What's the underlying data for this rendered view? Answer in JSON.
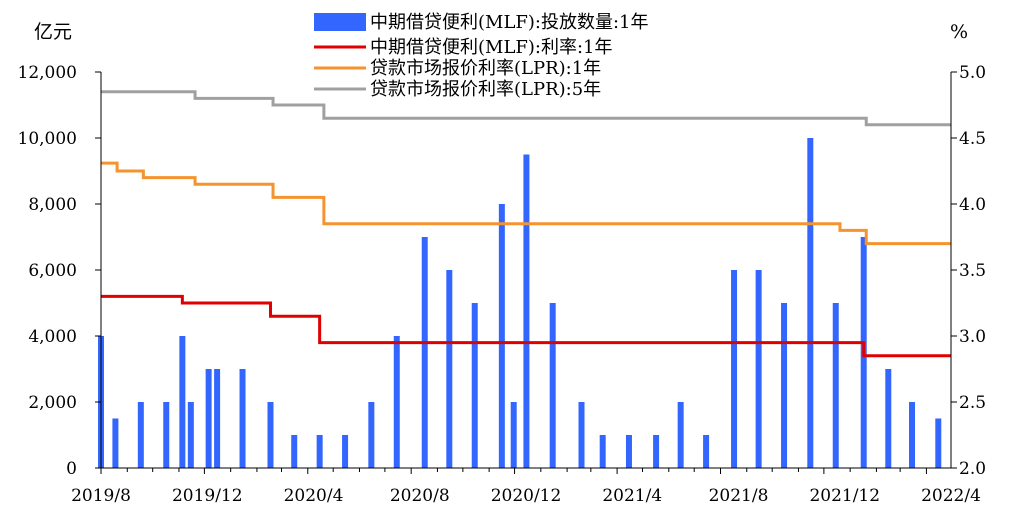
{
  "chart_data": {
    "type": "bar",
    "title": "",
    "y_left": {
      "unit": "亿元",
      "range": [
        0,
        12000
      ],
      "ticks": [
        "0",
        "2,000",
        "4,000",
        "6,000",
        "8,000",
        "10,000",
        "12,000"
      ]
    },
    "y_right": {
      "unit": "%",
      "range": [
        2.0,
        5.0
      ],
      "ticks": [
        "2.0",
        "2.5",
        "3.0",
        "3.5",
        "4.0",
        "4.5",
        "5.0"
      ]
    },
    "x_ticks": [
      "2019/8",
      "2019/12",
      "2020/4",
      "2020/8",
      "2020/12",
      "2021/4",
      "2021/8",
      "2021/12",
      "2022/4"
    ],
    "x_range": [
      "2019-08-01",
      "2022-04-30"
    ],
    "grid": false,
    "legend_position": "top",
    "series": [
      {
        "name": "中期借贷便利(MLF):投放数量:1年",
        "kind": "bar",
        "axis": "left",
        "color": "#3366FF",
        "points": [
          {
            "date": "2019-08-01",
            "value": 4000
          },
          {
            "date": "2019-08-18",
            "value": 1500
          },
          {
            "date": "2019-09-17",
            "value": 2000
          },
          {
            "date": "2019-10-17",
            "value": 2000
          },
          {
            "date": "2019-11-05",
            "value": 4000
          },
          {
            "date": "2019-11-15",
            "value": 2000
          },
          {
            "date": "2019-12-06",
            "value": 3000
          },
          {
            "date": "2019-12-16",
            "value": 3000
          },
          {
            "date": "2020-01-15",
            "value": 3000
          },
          {
            "date": "2020-02-17",
            "value": 2000
          },
          {
            "date": "2020-03-16",
            "value": 1000
          },
          {
            "date": "2020-04-15",
            "value": 1000
          },
          {
            "date": "2020-05-15",
            "value": 1000
          },
          {
            "date": "2020-06-15",
            "value": 2000
          },
          {
            "date": "2020-07-15",
            "value": 4000
          },
          {
            "date": "2020-08-17",
            "value": 7000
          },
          {
            "date": "2020-09-15",
            "value": 6000
          },
          {
            "date": "2020-10-15",
            "value": 5000
          },
          {
            "date": "2020-11-16",
            "value": 8000
          },
          {
            "date": "2020-11-30",
            "value": 2000
          },
          {
            "date": "2020-12-15",
            "value": 9500
          },
          {
            "date": "2021-01-15",
            "value": 5000
          },
          {
            "date": "2021-02-18",
            "value": 2000
          },
          {
            "date": "2021-03-15",
            "value": 1000
          },
          {
            "date": "2021-04-15",
            "value": 1000
          },
          {
            "date": "2021-05-17",
            "value": 1000
          },
          {
            "date": "2021-06-15",
            "value": 2000
          },
          {
            "date": "2021-07-15",
            "value": 1000
          },
          {
            "date": "2021-08-17",
            "value": 6000
          },
          {
            "date": "2021-09-15",
            "value": 6000
          },
          {
            "date": "2021-10-15",
            "value": 5000
          },
          {
            "date": "2021-11-15",
            "value": 10000
          },
          {
            "date": "2021-12-15",
            "value": 5000
          },
          {
            "date": "2022-01-17",
            "value": 7000
          },
          {
            "date": "2022-02-15",
            "value": 3000
          },
          {
            "date": "2022-03-15",
            "value": 2000
          },
          {
            "date": "2022-04-15",
            "value": 1500
          }
        ]
      },
      {
        "name": "中期借贷便利(MLF):利率:1年",
        "kind": "step",
        "axis": "right",
        "color": "#E00000",
        "points": [
          {
            "date": "2019-08-01",
            "value": 3.3
          },
          {
            "date": "2019-11-05",
            "value": 3.25
          },
          {
            "date": "2020-02-17",
            "value": 3.15
          },
          {
            "date": "2020-04-15",
            "value": 2.95
          },
          {
            "date": "2022-01-17",
            "value": 2.85
          },
          {
            "date": "2022-04-30",
            "value": 2.85
          }
        ]
      },
      {
        "name": "贷款市场报价利率(LPR):1年",
        "kind": "step",
        "axis": "right",
        "color": "#F5932F",
        "points": [
          {
            "date": "2019-08-01",
            "value": 4.31
          },
          {
            "date": "2019-08-20",
            "value": 4.25
          },
          {
            "date": "2019-09-20",
            "value": 4.2
          },
          {
            "date": "2019-11-20",
            "value": 4.15
          },
          {
            "date": "2020-02-20",
            "value": 4.05
          },
          {
            "date": "2020-04-20",
            "value": 3.85
          },
          {
            "date": "2021-12-20",
            "value": 3.8
          },
          {
            "date": "2022-01-20",
            "value": 3.7
          },
          {
            "date": "2022-04-30",
            "value": 3.7
          }
        ]
      },
      {
        "name": "贷款市场报价利率(LPR):5年",
        "kind": "step",
        "axis": "right",
        "color": "#A0A0A0",
        "points": [
          {
            "date": "2019-08-01",
            "value": 4.85
          },
          {
            "date": "2019-11-20",
            "value": 4.8
          },
          {
            "date": "2020-02-20",
            "value": 4.75
          },
          {
            "date": "2020-04-20",
            "value": 4.65
          },
          {
            "date": "2022-01-20",
            "value": 4.6
          },
          {
            "date": "2022-04-30",
            "value": 4.6
          }
        ]
      }
    ]
  }
}
